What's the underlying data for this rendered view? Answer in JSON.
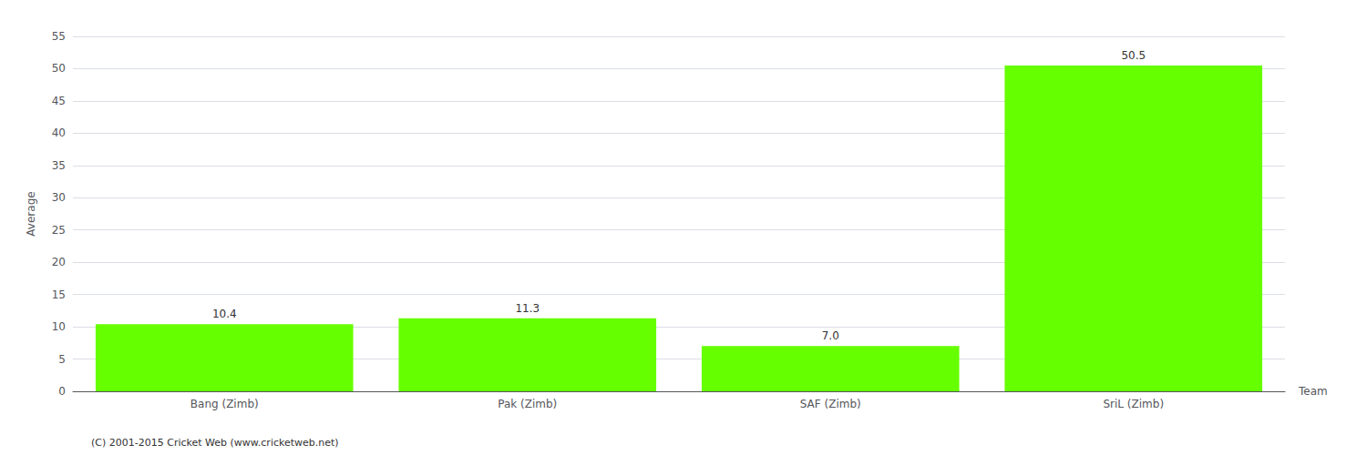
{
  "chart_data": {
    "type": "bar",
    "categories": [
      "Bang (Zimb)",
      "Pak (Zimb)",
      "SAF (Zimb)",
      "SriL (Zimb)"
    ],
    "values": [
      10.4,
      11.3,
      7.0,
      50.5
    ],
    "value_labels": [
      "10.4",
      "11.3",
      "7.0",
      "50.5"
    ],
    "data_labels": true,
    "color": "#66ff00",
    "xlabel": "Team",
    "ylabel": "Average",
    "ylim": [
      0,
      55
    ],
    "yticks": [
      0,
      5,
      10,
      15,
      20,
      25,
      30,
      35,
      40,
      45,
      50,
      55
    ],
    "grid": true,
    "annotations": [
      "(C) 2001-2015 Cricket Web (www.cricketweb.net)"
    ]
  }
}
